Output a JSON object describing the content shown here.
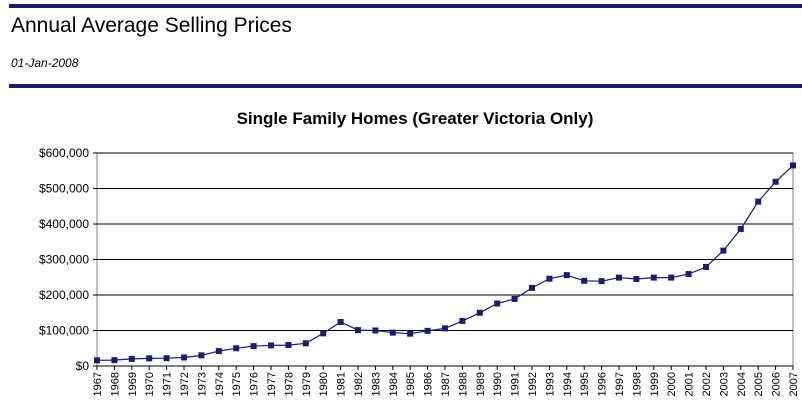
{
  "header": {
    "title": "Annual Average Selling Prices",
    "date": "01-Jan-2008"
  },
  "colors": {
    "line": "#1a1a7a",
    "marker": "#1a1a7a",
    "rule": "#1a1a7a",
    "grid": "#000000"
  },
  "chart_data": {
    "type": "line",
    "title": "Single Family Homes (Greater Victoria Only)",
    "xlabel": "",
    "ylabel": "",
    "grid": true,
    "legend": "none",
    "ylim": [
      0,
      600000
    ],
    "y_ticks": [
      "$0",
      "$100,000",
      "$200,000",
      "$300,000",
      "$400,000",
      "$500,000",
      "$600,000"
    ],
    "categories": [
      "1967",
      "1968",
      "1969",
      "1970",
      "1971",
      "1972",
      "1973",
      "1974",
      "1975",
      "1976",
      "1977",
      "1978",
      "1979",
      "1980",
      "1981",
      "1982",
      "1983",
      "1984",
      "1985",
      "1986",
      "1987",
      "1988",
      "1989",
      "1990",
      "1991",
      "1992",
      "1993",
      "1994",
      "1995",
      "1996",
      "1997",
      "1998",
      "1999",
      "2000",
      "2001",
      "2002",
      "2003",
      "2004",
      "2005",
      "2006",
      "2007"
    ],
    "values": [
      16000,
      16500,
      20000,
      21500,
      22000,
      24000,
      30000,
      42000,
      50000,
      56000,
      58000,
      59000,
      64000,
      92000,
      124000,
      101000,
      100000,
      94000,
      91000,
      99000,
      106000,
      127000,
      150000,
      176000,
      189000,
      220000,
      246000,
      256000,
      240000,
      239000,
      249000,
      245000,
      249000,
      249000,
      259000,
      279000,
      325000,
      386000,
      463000,
      519000,
      565000
    ]
  }
}
